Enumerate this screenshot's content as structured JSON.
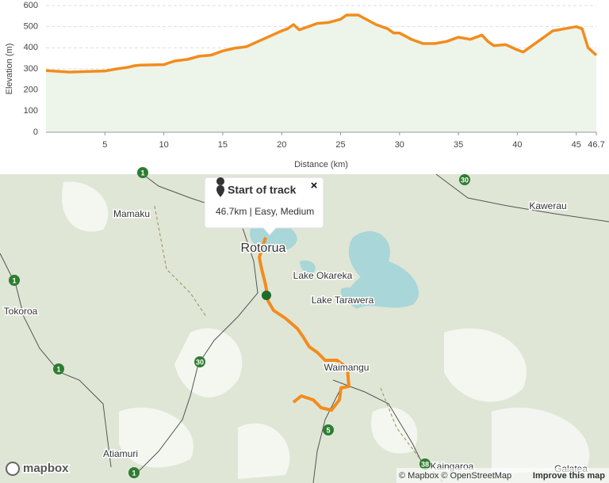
{
  "chart_data": {
    "type": "line",
    "ylabel": "Elevation (m)",
    "xlabel": "Distance (km)",
    "x": [
      0,
      2,
      5,
      6,
      7,
      7.5,
      8,
      10,
      10.5,
      11,
      12,
      13,
      14,
      15,
      16,
      17,
      18,
      19,
      20,
      20.5,
      21,
      21.5,
      22,
      23,
      24,
      25,
      25.5,
      26.5,
      27,
      28,
      29,
      29.5,
      30,
      31,
      32,
      33,
      34,
      35,
      36,
      37,
      37.5,
      38,
      39,
      40,
      40.5,
      41,
      42,
      43,
      44,
      45,
      45.5,
      46,
      46.7
    ],
    "values": [
      292,
      285,
      290,
      300,
      308,
      315,
      318,
      320,
      330,
      338,
      345,
      360,
      365,
      385,
      398,
      405,
      430,
      455,
      480,
      490,
      510,
      485,
      495,
      515,
      520,
      535,
      555,
      555,
      540,
      510,
      490,
      470,
      470,
      440,
      420,
      420,
      430,
      450,
      440,
      460,
      430,
      410,
      415,
      390,
      380,
      400,
      440,
      480,
      490,
      500,
      490,
      400,
      365
    ],
    "color": "#f28c1e",
    "fill": "#edf4ea",
    "xlim": [
      0,
      46.7
    ],
    "ylim": [
      0,
      600
    ],
    "xticks": [
      5,
      10,
      15,
      20,
      25,
      30,
      35,
      40,
      45,
      46.7
    ],
    "yticks": [
      0,
      100,
      200,
      300,
      400,
      500,
      600
    ],
    "grid": true
  },
  "map": {
    "popup": {
      "title": "Start of track",
      "detail": "46.7km | Easy, Medium",
      "close": "×"
    },
    "places": [
      "Mamaku",
      "Rotorua",
      "Lake Okareka",
      "Lake Tarawera",
      "Tokoroa",
      "Kawerau",
      "Waimangu",
      "Atiamuri",
      "Kaingaroa",
      "Galatea"
    ],
    "shields": [
      "1",
      "30",
      "30",
      "1",
      "1",
      "30",
      "5",
      "38",
      "1"
    ],
    "logo": "mapbox",
    "attribution": "© Mapbox © OpenStreetMap",
    "improve": "Improve this map"
  }
}
